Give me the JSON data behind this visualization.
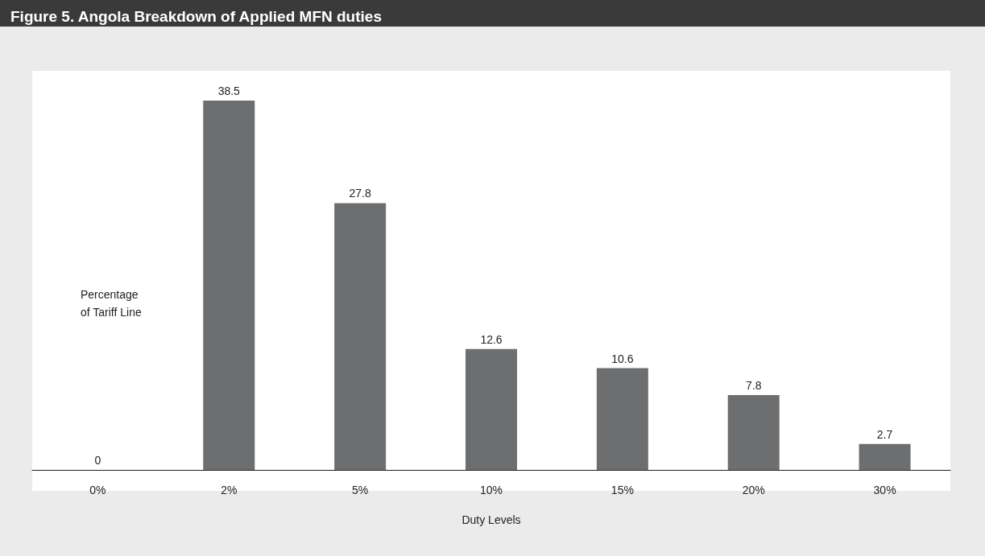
{
  "chart_data": {
    "type": "bar",
    "title": "Figure 5. Angola Breakdown of Applied MFN duties",
    "xlabel": "Duty Levels",
    "ylabel": "Percentage of Tariff Line",
    "categories": [
      "0%",
      "2%",
      "5%",
      "10%",
      "15%",
      "20%",
      "30%"
    ],
    "values": [
      0,
      38.5,
      27.8,
      12.6,
      10.6,
      7.8,
      2.7
    ],
    "color": "#6d6e70",
    "data_labels": true
  }
}
